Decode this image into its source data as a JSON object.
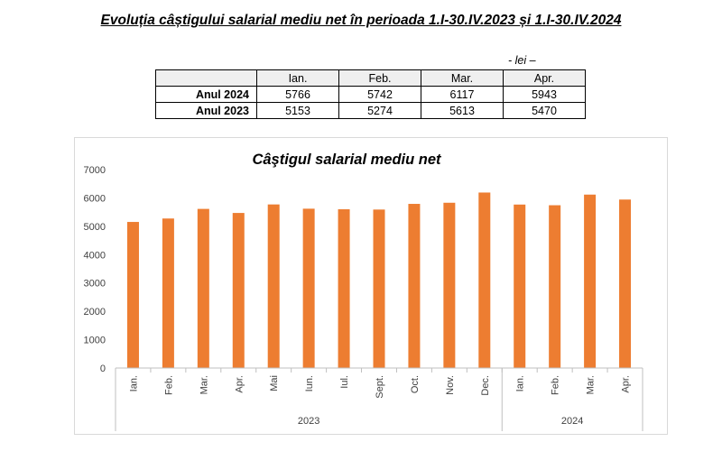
{
  "heading": "Evoluția câștigului salarial mediu net în perioada 1.I-30.IV.2023 și 1.I-30.IV.2024",
  "unit_note": "- lei –",
  "table": {
    "columns": [
      "",
      "Ian.",
      "Feb.",
      "Mar.",
      "Apr."
    ],
    "rows": [
      {
        "label": "Anul 2024",
        "values": [
          "5766",
          "5742",
          "6117",
          "5943"
        ]
      },
      {
        "label": "Anul 2023",
        "values": [
          "5153",
          "5274",
          "5613",
          "5470"
        ]
      }
    ]
  },
  "chart_data": {
    "type": "bar",
    "title": "Câştigul salarial mediu net",
    "xlabel": "",
    "ylabel": "",
    "ylim": [
      0,
      7000
    ],
    "yticks": [
      0,
      1000,
      2000,
      3000,
      4000,
      5000,
      6000,
      7000
    ],
    "grid": false,
    "legend": "none",
    "bar_color": "#ED7D31",
    "categories": [
      "Ian.",
      "Feb.",
      "Mar.",
      "Apr.",
      "Mai",
      "Iun.",
      "Iul.",
      "Sept.",
      "Oct.",
      "Nov.",
      "Dec.",
      "Ian.",
      "Feb.",
      "Mar.",
      "Apr."
    ],
    "values": [
      5153,
      5274,
      5613,
      5470,
      5770,
      5620,
      5600,
      5590,
      5790,
      5830,
      6190,
      5766,
      5742,
      6117,
      5943
    ],
    "groups": [
      {
        "label": "2023",
        "count": 11
      },
      {
        "label": "2024",
        "count": 4
      }
    ]
  }
}
